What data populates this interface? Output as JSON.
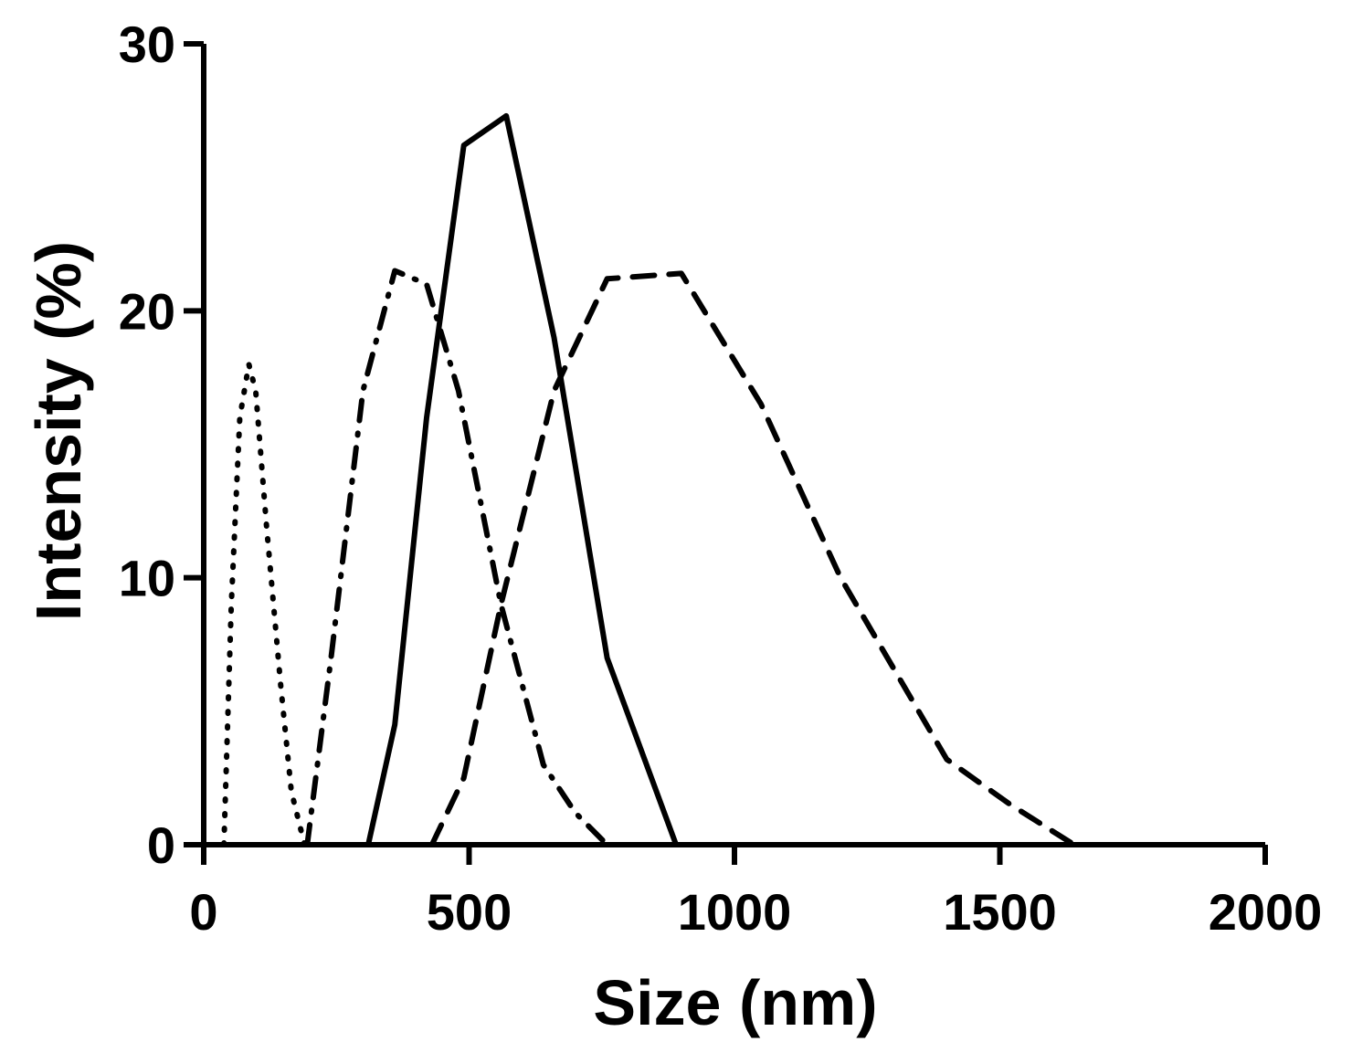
{
  "chart_data": {
    "type": "line",
    "title": "",
    "xlabel": "Size (nm)",
    "ylabel": "Intensity (%)",
    "xlim": [
      0,
      2000
    ],
    "ylim": [
      0,
      30
    ],
    "xticks": [
      0,
      500,
      1000,
      1500,
      2000
    ],
    "yticks": [
      0,
      10,
      20,
      30
    ],
    "grid": false,
    "legend": "none",
    "colors": {
      "line": "#000000",
      "axis": "#000000",
      "background": "#ffffff"
    },
    "series": [
      {
        "style": "dotted",
        "x": [
          38,
          52,
          68,
          85,
          98,
          118,
          145,
          165,
          190
        ],
        "y": [
          0,
          9,
          16,
          18,
          17,
          12,
          6,
          2,
          0
        ]
      },
      {
        "style": "dashdot",
        "x": [
          195,
          240,
          300,
          360,
          420,
          480,
          560,
          640,
          700,
          760
        ],
        "y": [
          0,
          7,
          17,
          21.5,
          21,
          17,
          9,
          3,
          1.2,
          0
        ]
      },
      {
        "style": "solid",
        "x": [
          310,
          360,
          420,
          490,
          570,
          660,
          760,
          890
        ],
        "y": [
          0,
          4.5,
          16,
          26.2,
          27.3,
          19,
          7,
          0
        ]
      },
      {
        "style": "dashed",
        "x": [
          430,
          490,
          560,
          660,
          760,
          900,
          1050,
          1200,
          1400,
          1520,
          1640
        ],
        "y": [
          0,
          2.5,
          9,
          17,
          21.2,
          21.4,
          16.5,
          10,
          3.2,
          1.5,
          0
        ]
      }
    ]
  }
}
